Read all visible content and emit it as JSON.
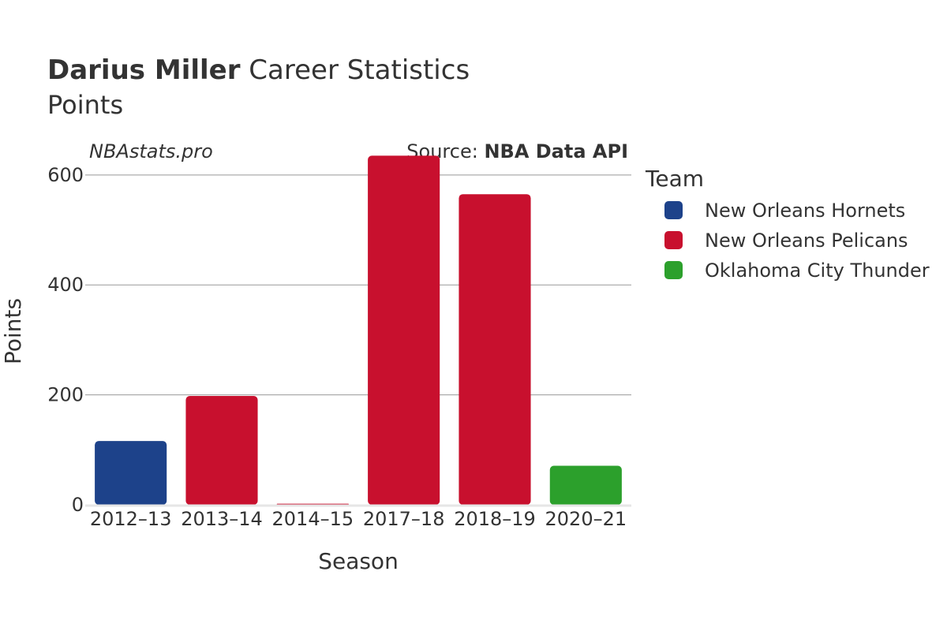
{
  "chart_data": {
    "type": "bar",
    "title_bold": "Darius Miller",
    "title_rest": " Career Statistics",
    "subtitle": "Points",
    "watermark": "NBAstats.pro",
    "source_prefix": "Source: ",
    "source_name": "NBA Data API",
    "xlabel": "Season",
    "ylabel": "Points",
    "ylim": [
      0,
      660
    ],
    "yticks": [
      0,
      200,
      400,
      600
    ],
    "grid": true,
    "legend_title": "Team",
    "legend_position": "right",
    "categories": [
      "2012–13",
      "2013–14",
      "2014–15",
      "2017–18",
      "2018–19",
      "2020–21"
    ],
    "bars": [
      {
        "season": "2012–13",
        "team": "New Orleans Hornets",
        "value": 116
      },
      {
        "season": "2013–14",
        "team": "New Orleans Pelicans",
        "value": 198
      },
      {
        "season": "2014–15",
        "team": "New Orleans Pelicans",
        "value": 2
      },
      {
        "season": "2017–18",
        "team": "New Orleans Pelicans",
        "value": 635
      },
      {
        "season": "2018–19",
        "team": "New Orleans Pelicans",
        "value": 565
      },
      {
        "season": "2020–21",
        "team": "Oklahoma City Thunder",
        "value": 71
      }
    ],
    "teams": [
      {
        "name": "New Orleans Hornets",
        "color": "#1d428a"
      },
      {
        "name": "New Orleans Pelicans",
        "color": "#c8102e"
      },
      {
        "name": "Oklahoma City Thunder",
        "color": "#2ca02c"
      }
    ]
  }
}
